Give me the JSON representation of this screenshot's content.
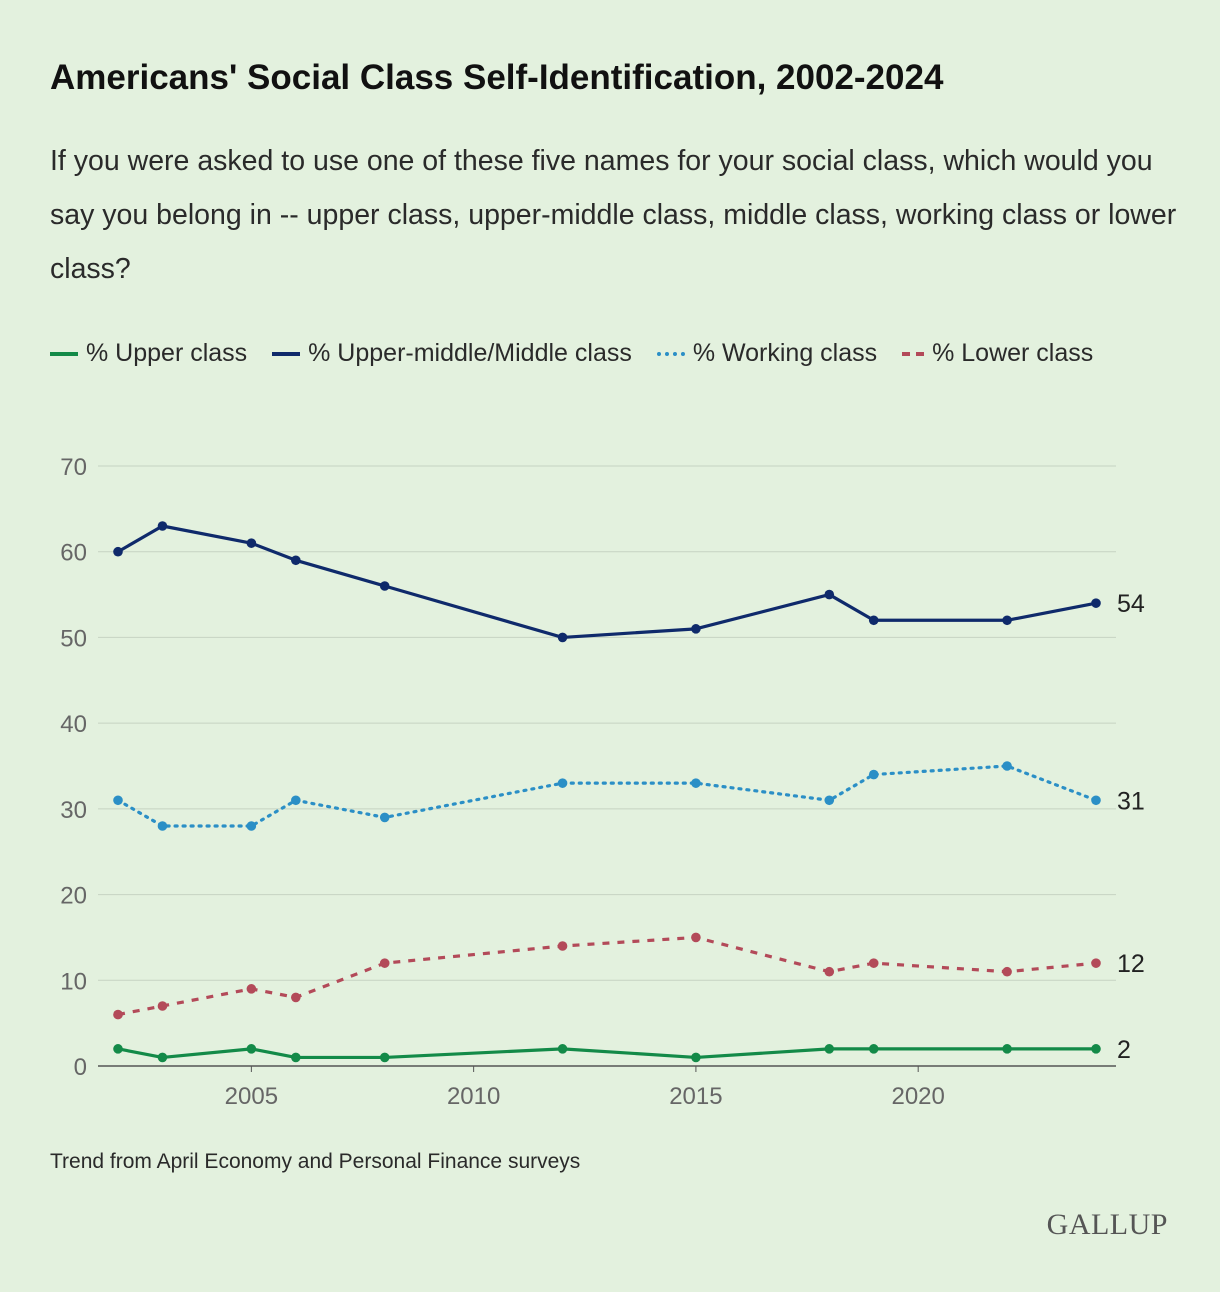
{
  "chart_data": {
    "type": "line",
    "title": "Americans' Social Class Self-Identification, 2002-2024",
    "subtitle": "If you were asked to use one of these five names for your social class, which would you say you belong in -- upper class, upper-middle class, middle class, working class or lower class?",
    "x": [
      2002,
      2003,
      2005,
      2006,
      2008,
      2012,
      2015,
      2018,
      2019,
      2022,
      2024
    ],
    "xlim": [
      2002,
      2024
    ],
    "xticks": [
      2005,
      2010,
      2015,
      2020
    ],
    "ylim": [
      0,
      70
    ],
    "yticks": [
      0,
      10,
      20,
      30,
      40,
      50,
      60,
      70
    ],
    "grid": true,
    "legend_placement": "top",
    "series": [
      {
        "name": "% Upper class",
        "color": "#138a48",
        "style": "solid",
        "values": [
          2,
          1,
          2,
          1,
          1,
          2,
          1,
          2,
          2,
          2,
          2
        ],
        "end_label": "2"
      },
      {
        "name": "% Upper-middle/Middle class",
        "color": "#0f2a6b",
        "style": "solid",
        "values": [
          60,
          63,
          61,
          59,
          56,
          50,
          51,
          55,
          52,
          52,
          54
        ],
        "end_label": "54"
      },
      {
        "name": "% Working class",
        "color": "#2b8fc6",
        "style": "dotted",
        "values": [
          31,
          28,
          28,
          31,
          29,
          33,
          33,
          31,
          34,
          35,
          31
        ],
        "end_label": "31"
      },
      {
        "name": "% Lower class",
        "color": "#b34a59",
        "style": "dashed",
        "values": [
          6,
          7,
          9,
          8,
          12,
          14,
          15,
          11,
          12,
          11,
          12
        ],
        "end_label": "12"
      }
    ]
  },
  "source": "Trend from April Economy and Personal Finance surveys",
  "logo": "GALLUP"
}
